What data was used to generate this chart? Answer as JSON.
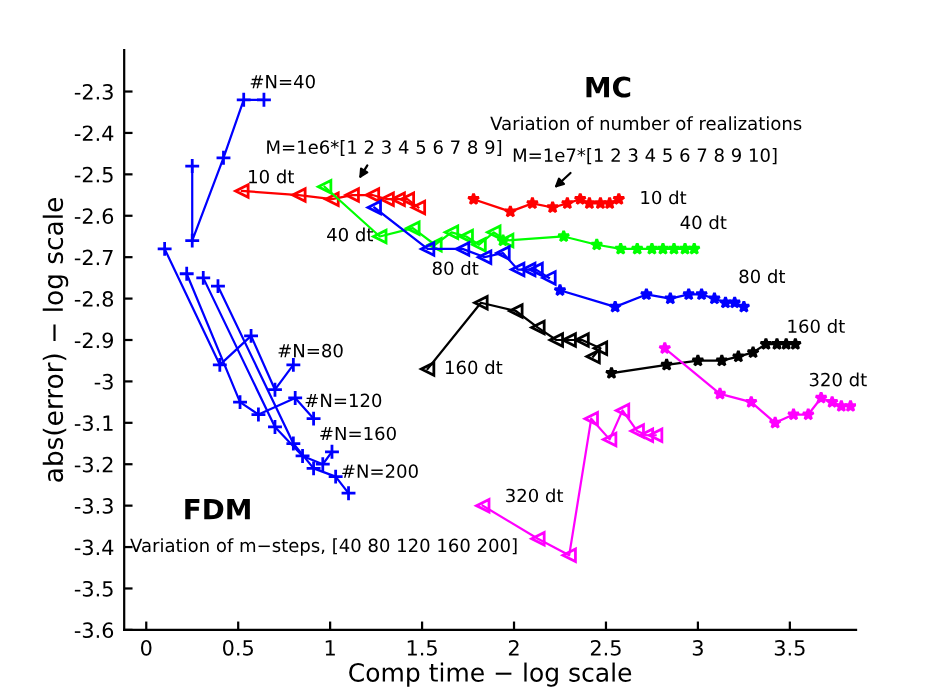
{
  "chart_data": {
    "type": "line",
    "xlabel": "Comp time − log scale",
    "ylabel": "abs(error) − log scale",
    "xlim": [
      -0.12,
      3.86
    ],
    "ylim": [
      -3.6,
      -2.2
    ],
    "xticks": [
      0,
      0.5,
      1,
      1.5,
      2,
      2.5,
      3,
      3.5
    ],
    "yticks": [
      -3.6,
      -3.5,
      -3.4,
      -3.3,
      -3.2,
      -3.1,
      -3,
      -2.9,
      -2.8,
      -2.7,
      -2.6,
      -2.5,
      -2.4,
      -2.3
    ],
    "grid": false,
    "series": [
      {
        "color": "#0000ff",
        "marker": "cross",
        "x": [
          0.25,
          0.25,
          0.42,
          0.53,
          0.64
        ],
        "values": [
          -2.48,
          -2.66,
          -2.46,
          -2.32,
          -2.32
        ]
      },
      {
        "color": "#0000ff",
        "marker": "cross",
        "x": [
          0.1,
          0.4,
          0.57,
          0.7,
          0.8
        ],
        "values": [
          -2.68,
          -2.96,
          -2.89,
          -3.02,
          -2.96
        ]
      },
      {
        "color": "#0000ff",
        "marker": "cross",
        "x": [
          0.22,
          0.51,
          0.61,
          0.81,
          0.91
        ],
        "values": [
          -2.74,
          -3.05,
          -3.08,
          -3.04,
          -3.09
        ]
      },
      {
        "color": "#0000ff",
        "marker": "cross",
        "x": [
          0.31,
          0.7,
          0.85,
          0.96,
          1.01
        ],
        "values": [
          -2.75,
          -3.11,
          -3.18,
          -3.2,
          -3.17
        ]
      },
      {
        "color": "#0000ff",
        "marker": "cross",
        "x": [
          0.39,
          0.8,
          0.91,
          1.03,
          1.1
        ],
        "values": [
          -2.77,
          -3.15,
          -3.21,
          -3.23,
          -3.27
        ]
      },
      {
        "color": "#ff0000",
        "marker": "triangle",
        "x": [
          0.52,
          0.83,
          1.01,
          1.12,
          1.23,
          1.31,
          1.37,
          1.42,
          1.48
        ],
        "values": [
          -2.54,
          -2.55,
          -2.56,
          -2.55,
          -2.55,
          -2.56,
          -2.56,
          -2.56,
          -2.58
        ]
      },
      {
        "color": "#ff0000",
        "marker": "star",
        "x": [
          1.78,
          1.98,
          2.1,
          2.21,
          2.29,
          2.36,
          2.41,
          2.47,
          2.52,
          2.57
        ],
        "values": [
          -2.56,
          -2.59,
          -2.57,
          -2.58,
          -2.57,
          -2.56,
          -2.57,
          -2.57,
          -2.57,
          -2.56
        ]
      },
      {
        "color": "#00ff00",
        "marker": "triangle",
        "x": [
          0.97,
          1.27,
          1.45,
          1.57,
          1.66,
          1.74,
          1.81,
          1.89,
          1.96
        ],
        "values": [
          -2.53,
          -2.65,
          -2.63,
          -2.67,
          -2.64,
          -2.65,
          -2.67,
          -2.64,
          -2.66
        ]
      },
      {
        "color": "#00ff00",
        "marker": "star",
        "x": [
          1.94,
          2.27,
          2.45,
          2.58,
          2.67,
          2.75,
          2.81,
          2.87,
          2.93,
          2.98
        ],
        "values": [
          -2.66,
          -2.65,
          -2.67,
          -2.68,
          -2.68,
          -2.68,
          -2.68,
          -2.68,
          -2.68,
          -2.68
        ]
      },
      {
        "color": "#0000ff",
        "marker": "triangle",
        "x": [
          1.24,
          1.53,
          1.72,
          1.84,
          1.94,
          2.02,
          2.08,
          2.12,
          2.19
        ],
        "values": [
          -2.58,
          -2.68,
          -2.68,
          -2.7,
          -2.69,
          -2.73,
          -2.73,
          -2.73,
          -2.75
        ]
      },
      {
        "color": "#0000ff",
        "marker": "star",
        "x": [
          2.25,
          2.55,
          2.72,
          2.85,
          2.95,
          3.02,
          3.09,
          3.15,
          3.2,
          3.25
        ],
        "values": [
          -2.78,
          -2.82,
          -2.79,
          -2.8,
          -2.79,
          -2.79,
          -2.8,
          -2.81,
          -2.81,
          -2.82
        ]
      },
      {
        "color": "#000000",
        "marker": "triangle",
        "x": [
          1.53,
          1.82,
          2.01,
          2.13,
          2.23,
          2.3,
          2.37,
          2.47,
          2.43
        ],
        "values": [
          -2.97,
          -2.81,
          -2.83,
          -2.87,
          -2.9,
          -2.9,
          -2.9,
          -2.92,
          -2.94
        ]
      },
      {
        "color": "#000000",
        "marker": "star",
        "x": [
          2.53,
          2.83,
          3.0,
          3.13,
          3.22,
          3.3,
          3.37,
          3.43,
          3.48,
          3.53
        ],
        "values": [
          -2.98,
          -2.96,
          -2.95,
          -2.95,
          -2.94,
          -2.93,
          -2.91,
          -2.91,
          -2.91,
          -2.91
        ]
      },
      {
        "color": "#ff00ff",
        "marker": "triangle",
        "x": [
          1.83,
          2.13,
          2.3,
          2.42,
          2.52,
          2.59,
          2.67,
          2.72,
          2.77
        ],
        "values": [
          -3.3,
          -3.38,
          -3.42,
          -3.09,
          -3.14,
          -3.07,
          -3.12,
          -3.13,
          -3.13
        ]
      },
      {
        "color": "#ff00ff",
        "marker": "star",
        "x": [
          2.82,
          3.12,
          3.29,
          3.42,
          3.52,
          3.6,
          3.67,
          3.73,
          3.78,
          3.83
        ],
        "values": [
          -2.92,
          -3.03,
          -3.05,
          -3.1,
          -3.08,
          -3.08,
          -3.04,
          -3.05,
          -3.06,
          -3.06
        ]
      }
    ],
    "annotations": [
      "FDM",
      "Variation of m−steps, [40 80 120 160 200]",
      "MC",
      "Variation of number of realizations",
      "M=1e6*[1 2 3 4 5 6 7 8 9]",
      "M=1e7*[1 2 3 4 5 6 7 8 9 10]",
      "#N=40",
      "#N=80",
      "#N=120",
      "#N=160",
      "#N=200",
      "10 dt",
      "10 dt",
      "40 dt",
      "40 dt",
      "80 dt",
      "80 dt",
      "160 dt",
      "160 dt",
      "320 dt",
      "320 dt"
    ]
  }
}
